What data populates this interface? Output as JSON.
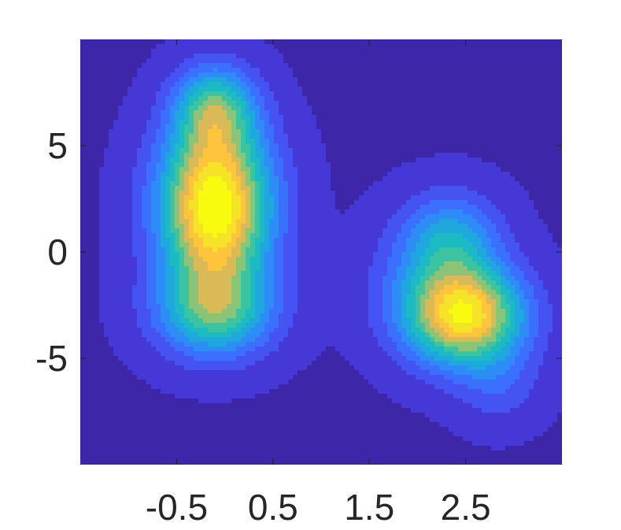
{
  "chart_data": {
    "type": "heatmap",
    "subtype": "filled-contour",
    "title": "",
    "xlabel": "",
    "ylabel": "",
    "xlim": [
      -1.5,
      3.5
    ],
    "ylim": [
      -10,
      10
    ],
    "x_ticks": [
      {
        "value": -0.5,
        "label": "-0.5"
      },
      {
        "value": 0.5,
        "label": "0.5"
      },
      {
        "value": 1.5,
        "label": "1.5"
      },
      {
        "value": 2.5,
        "label": "2.5"
      }
    ],
    "y_ticks": [
      {
        "value": 5,
        "label": "5"
      },
      {
        "value": 0,
        "label": "0"
      },
      {
        "value": -5,
        "label": "-5"
      }
    ],
    "grid": false,
    "colormap": "parula",
    "levels": 11,
    "level_colors": [
      "#3e26a8",
      "#4538d7",
      "#4653f3",
      "#3b6ffe",
      "#2d8cf5",
      "#1fa8dd",
      "#1cbac3",
      "#3cc3a0",
      "#8bc477",
      "#d9ba56",
      "#fec43c",
      "#f5e328",
      "#f9fb0e"
    ],
    "components": [
      {
        "cx": -0.1,
        "cy": 1.5,
        "sx": 0.4,
        "sy": 2.3,
        "weight": 1.0
      },
      {
        "cx": -0.1,
        "cy": -2.8,
        "sx": 0.42,
        "sy": 1.5,
        "weight": 0.6
      },
      {
        "cx": -0.1,
        "cy": 6.8,
        "sx": 0.3,
        "sy": 1.4,
        "weight": 0.58
      },
      {
        "cx": -0.1,
        "cy": 4.2,
        "sx": 0.4,
        "sy": 1.8,
        "weight": 0.35
      },
      {
        "cx": 2.5,
        "cy": -3.0,
        "sx": 0.42,
        "sy": 1.6,
        "weight": 1.0
      },
      {
        "cx": 2.35,
        "cy": 0.6,
        "sx": 0.35,
        "sy": 1.5,
        "weight": 0.4
      },
      {
        "cx": 2.85,
        "cy": -6.3,
        "sx": 0.3,
        "sy": 1.3,
        "weight": 0.15
      },
      {
        "cx": 2.0,
        "cy": -1.5,
        "sx": 0.4,
        "sy": 2.0,
        "weight": 0.15
      }
    ]
  }
}
